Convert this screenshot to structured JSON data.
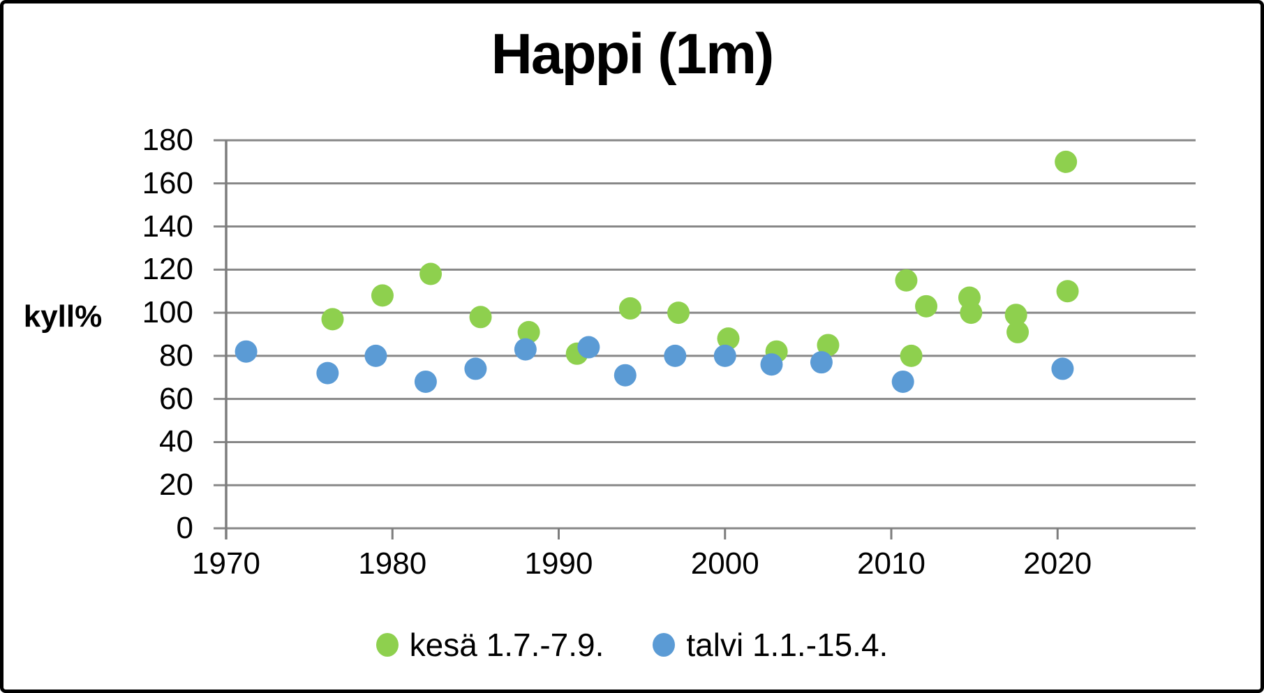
{
  "title": "Happi (1m)",
  "y_axis": {
    "label": "kyll%",
    "ticks": [
      "0",
      "20",
      "40",
      "60",
      "80",
      "100",
      "120",
      "140",
      "160",
      "180"
    ]
  },
  "x_axis": {
    "ticks": [
      "1970",
      "1980",
      "1990",
      "2000",
      "2010",
      "2020"
    ]
  },
  "legend": {
    "items": [
      {
        "label": "kesä 1.7.-7.9.",
        "color": "#8ED04E"
      },
      {
        "label": "talvi 1.1.-15.4.",
        "color": "#5B9BD5"
      }
    ]
  },
  "colors": {
    "grid": "#878787",
    "axis": "#7d7d7d",
    "text": "#000000",
    "frame": "#000000",
    "background": "#ffffff"
  },
  "chart_data": {
    "type": "scatter",
    "title": "Happi (1m)",
    "xlabel": "",
    "ylabel": "kyll%",
    "xlim": [
      1970,
      2028.3
    ],
    "ylim": [
      0,
      180
    ],
    "x_ticks": [
      1970,
      1980,
      1990,
      2000,
      2010,
      2020
    ],
    "y_ticks": [
      0,
      20,
      40,
      60,
      80,
      100,
      120,
      140,
      160,
      180
    ],
    "grid": "horizontal-only",
    "legend_position": "bottom-center",
    "marker": {
      "shape": "circle",
      "radius_px": 16
    },
    "series": [
      {
        "name": "kesä 1.7.-7.9.",
        "color": "#8ED04E",
        "points": [
          {
            "x": 1976.4,
            "y": 97
          },
          {
            "x": 1979.4,
            "y": 108
          },
          {
            "x": 1982.3,
            "y": 118
          },
          {
            "x": 1985.3,
            "y": 98
          },
          {
            "x": 1988.2,
            "y": 91
          },
          {
            "x": 1991.1,
            "y": 81
          },
          {
            "x": 1994.3,
            "y": 102
          },
          {
            "x": 1997.2,
            "y": 100
          },
          {
            "x": 2000.2,
            "y": 88
          },
          {
            "x": 2003.1,
            "y": 82
          },
          {
            "x": 2006.2,
            "y": 85
          },
          {
            "x": 2010.9,
            "y": 115
          },
          {
            "x": 2011.2,
            "y": 80
          },
          {
            "x": 2012.1,
            "y": 103
          },
          {
            "x": 2014.7,
            "y": 107
          },
          {
            "x": 2014.8,
            "y": 100
          },
          {
            "x": 2017.5,
            "y": 99
          },
          {
            "x": 2017.6,
            "y": 91
          },
          {
            "x": 2020.5,
            "y": 170
          },
          {
            "x": 2020.6,
            "y": 110
          }
        ]
      },
      {
        "name": "talvi 1.1.-15.4.",
        "color": "#5B9BD5",
        "points": [
          {
            "x": 1971.2,
            "y": 82
          },
          {
            "x": 1976.1,
            "y": 72
          },
          {
            "x": 1979.0,
            "y": 80
          },
          {
            "x": 1982.0,
            "y": 68
          },
          {
            "x": 1985.0,
            "y": 74
          },
          {
            "x": 1988.0,
            "y": 83
          },
          {
            "x": 1991.8,
            "y": 84
          },
          {
            "x": 1994.0,
            "y": 71
          },
          {
            "x": 1997.0,
            "y": 80
          },
          {
            "x": 2000.0,
            "y": 80
          },
          {
            "x": 2002.8,
            "y": 76
          },
          {
            "x": 2005.8,
            "y": 77
          },
          {
            "x": 2010.7,
            "y": 68
          },
          {
            "x": 2020.3,
            "y": 74
          }
        ]
      }
    ]
  }
}
